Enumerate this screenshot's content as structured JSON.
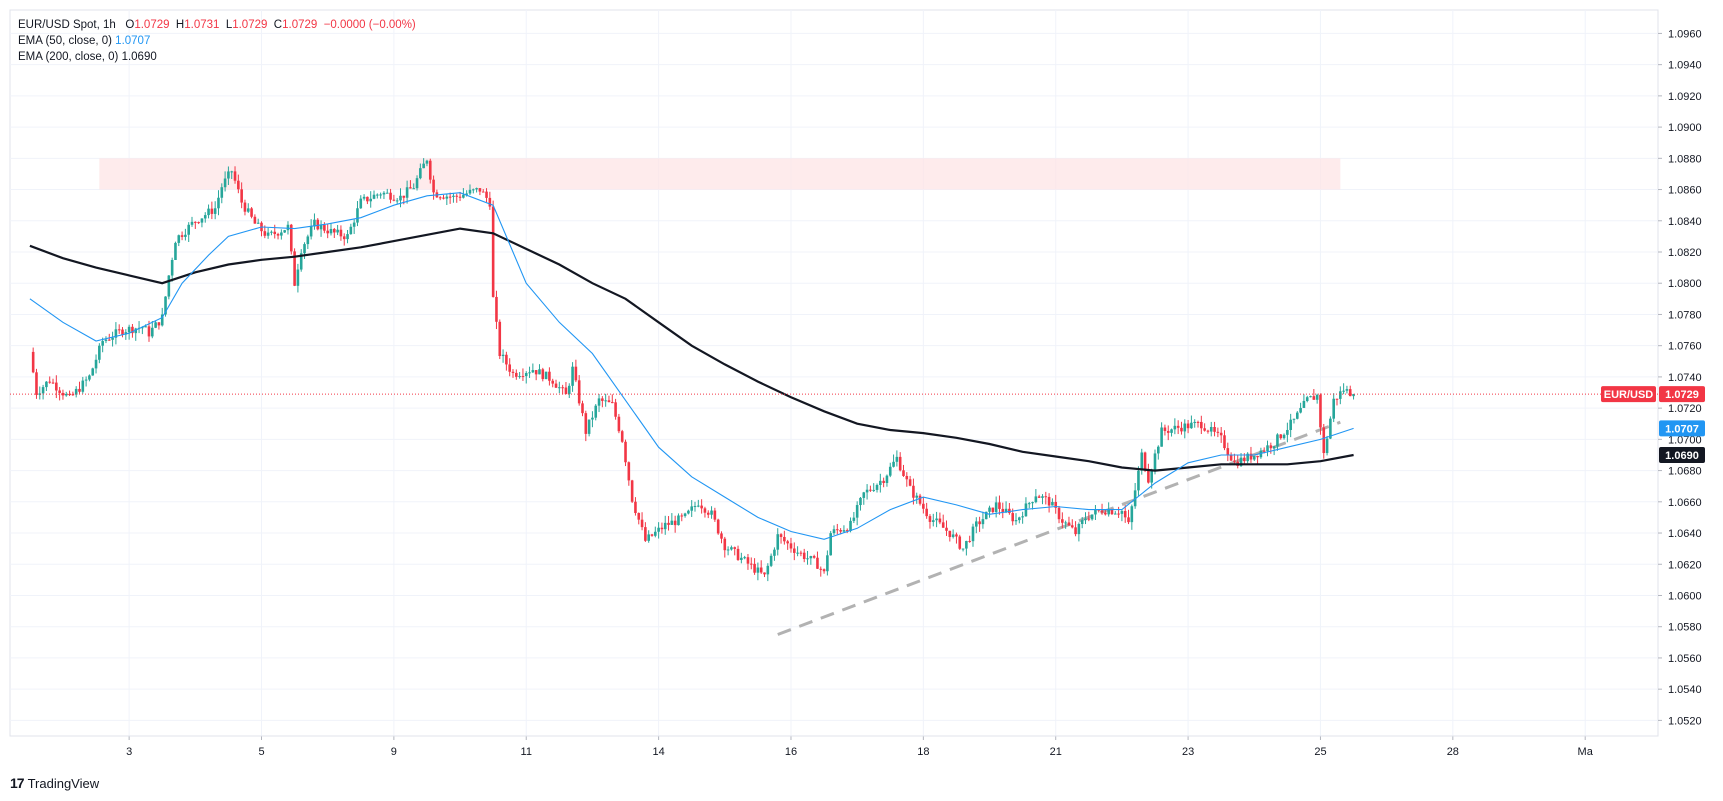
{
  "legend": {
    "symbol": "EUR/USD Spot, 1h",
    "ohlc_o_label": "O",
    "ohlc_o": "1.0729",
    "ohlc_h_label": "H",
    "ohlc_h": "1.0731",
    "ohlc_l_label": "L",
    "ohlc_l": "1.0729",
    "ohlc_c_label": "C",
    "ohlc_c": "1.0729",
    "ohlc_change": "−0.0000 (−0.00%)",
    "ema50_label": "EMA (50, close, 0)",
    "ema50_value": "1.0707",
    "ema200_label": "EMA (200, close, 0)",
    "ema200_value": "1.0690"
  },
  "branding": {
    "logo": "17",
    "name": "TradingView"
  },
  "colors": {
    "up": "#26a69a",
    "down": "#f23645",
    "ema50": "#2196f3",
    "ema200": "#131722",
    "zone": "#fde4e6",
    "trendline": "#b2b2b2",
    "grid": "#f0f3fa"
  },
  "chart_data": {
    "type": "candlestick",
    "y_axis": {
      "ylim": [
        1.051,
        1.0975
      ],
      "ticks": [
        "1.0960",
        "1.0940",
        "1.0920",
        "1.0900",
        "1.0880",
        "1.0860",
        "1.0840",
        "1.0820",
        "1.0800",
        "1.0780",
        "1.0760",
        "1.0740",
        "1.0720",
        "1.0700",
        "1.0680",
        "1.0660",
        "1.0640",
        "1.0620",
        "1.0600",
        "1.0580",
        "1.0560",
        "1.0540",
        "1.0520"
      ]
    },
    "x_axis": {
      "xlim": [
        -0.3,
        24.6
      ],
      "ticks": [
        {
          "label": "3",
          "t": 1.5
        },
        {
          "label": "5",
          "t": 3.5
        },
        {
          "label": "9",
          "t": 5.5
        },
        {
          "label": "11",
          "t": 7.5
        },
        {
          "label": "14",
          "t": 9.5
        },
        {
          "label": "16",
          "t": 11.5
        },
        {
          "label": "18",
          "t": 13.5
        },
        {
          "label": "21",
          "t": 15.5
        },
        {
          "label": "23",
          "t": 17.5
        },
        {
          "label": "25",
          "t": 19.5
        },
        {
          "label": "28",
          "t": 21.5
        },
        {
          "label": "Ma",
          "t": 23.5
        }
      ]
    },
    "price_tags": [
      {
        "label": "EUR/USD",
        "value": "1.0729",
        "price": 1.0729,
        "color": "#f23645"
      },
      {
        "label": "",
        "value": "1.0707",
        "price": 1.0707,
        "color": "#2196f3"
      },
      {
        "label": "",
        "value": "1.0690",
        "price": 1.069,
        "color": "#131722"
      }
    ],
    "last_price": 1.0729,
    "resistance_zone": {
      "t_start": 1.05,
      "t_end": 19.8,
      "price_low": 1.086,
      "price_high": 1.088
    },
    "trendline": {
      "t1": 11.3,
      "p1": 1.0575,
      "t2": 19.8,
      "p2": 1.0711
    },
    "close_path": [
      [
        0,
        1.0756
      ],
      [
        0.1,
        1.073
      ],
      [
        0.3,
        1.0738
      ],
      [
        0.6,
        1.0726
      ],
      [
        0.9,
        1.074
      ],
      [
        1.1,
        1.0763
      ],
      [
        1.4,
        1.077
      ],
      [
        1.7,
        1.0772
      ],
      [
        1.8,
        1.0768
      ],
      [
        2.0,
        1.0778
      ],
      [
        2.1,
        1.0805
      ],
      [
        2.2,
        1.0828
      ],
      [
        2.5,
        1.084
      ],
      [
        2.8,
        1.0848
      ],
      [
        2.9,
        1.0862
      ],
      [
        3.05,
        1.0872
      ],
      [
        3.2,
        1.0852
      ],
      [
        3.4,
        1.0838
      ],
      [
        3.6,
        1.083
      ],
      [
        3.9,
        1.0836
      ],
      [
        4.0,
        1.08
      ],
      [
        4.1,
        1.0822
      ],
      [
        4.3,
        1.0838
      ],
      [
        4.6,
        1.0832
      ],
      [
        4.8,
        1.083
      ],
      [
        5.0,
        1.0852
      ],
      [
        5.3,
        1.0858
      ],
      [
        5.6,
        1.0855
      ],
      [
        5.8,
        1.0862
      ],
      [
        6.0,
        1.088
      ],
      [
        6.1,
        1.0858
      ],
      [
        6.4,
        1.0855
      ],
      [
        6.8,
        1.086
      ],
      [
        6.95,
        1.0852
      ],
      [
        7.0,
        1.079
      ],
      [
        7.1,
        1.0755
      ],
      [
        7.3,
        1.0742
      ],
      [
        7.6,
        1.0745
      ],
      [
        7.9,
        1.0738
      ],
      [
        8.1,
        1.0728
      ],
      [
        8.2,
        1.0745
      ],
      [
        8.4,
        1.0705
      ],
      [
        8.6,
        1.0725
      ],
      [
        8.8,
        1.0722
      ],
      [
        8.95,
        1.07
      ],
      [
        9.1,
        1.0662
      ],
      [
        9.3,
        1.0635
      ],
      [
        9.6,
        1.0645
      ],
      [
        9.9,
        1.065
      ],
      [
        10.1,
        1.066
      ],
      [
        10.3,
        1.0652
      ],
      [
        10.5,
        1.0632
      ],
      [
        10.8,
        1.0622
      ],
      [
        11.1,
        1.0612
      ],
      [
        11.3,
        1.0638
      ],
      [
        11.6,
        1.0628
      ],
      [
        11.9,
        1.062
      ],
      [
        12.0,
        1.0614
      ],
      [
        12.1,
        1.064
      ],
      [
        12.4,
        1.0645
      ],
      [
        12.6,
        1.0665
      ],
      [
        12.9,
        1.0675
      ],
      [
        13.1,
        1.0688
      ],
      [
        13.3,
        1.0668
      ],
      [
        13.6,
        1.065
      ],
      [
        13.9,
        1.064
      ],
      [
        14.1,
        1.063
      ],
      [
        14.3,
        1.0645
      ],
      [
        14.6,
        1.0658
      ],
      [
        14.9,
        1.0648
      ],
      [
        15.2,
        1.0665
      ],
      [
        15.4,
        1.066
      ],
      [
        15.6,
        1.0648
      ],
      [
        15.8,
        1.064
      ],
      [
        15.95,
        1.065
      ],
      [
        16.2,
        1.0655
      ],
      [
        16.5,
        1.0654
      ],
      [
        16.6,
        1.0645
      ],
      [
        16.8,
        1.069
      ],
      [
        16.9,
        1.0675
      ],
      [
        17.1,
        1.0705
      ],
      [
        17.4,
        1.0708
      ],
      [
        17.7,
        1.071
      ],
      [
        18.0,
        1.07
      ],
      [
        18.2,
        1.0685
      ],
      [
        18.5,
        1.069
      ],
      [
        18.8,
        1.0698
      ],
      [
        19.1,
        1.0712
      ],
      [
        19.3,
        1.0725
      ],
      [
        19.45,
        1.0728
      ],
      [
        19.55,
        1.069
      ],
      [
        19.7,
        1.0725
      ],
      [
        19.85,
        1.0732
      ],
      [
        20.0,
        1.0729
      ]
    ],
    "ema50_path": [
      [
        0,
        1.079
      ],
      [
        0.5,
        1.0775
      ],
      [
        1.0,
        1.0763
      ],
      [
        1.5,
        1.0768
      ],
      [
        2.0,
        1.0778
      ],
      [
        2.3,
        1.08
      ],
      [
        2.7,
        1.0818
      ],
      [
        3.0,
        1.083
      ],
      [
        3.5,
        1.0836
      ],
      [
        4.0,
        1.0835
      ],
      [
        4.5,
        1.0838
      ],
      [
        5.0,
        1.0842
      ],
      [
        5.5,
        1.085
      ],
      [
        6.0,
        1.0856
      ],
      [
        6.5,
        1.0858
      ],
      [
        7.0,
        1.085
      ],
      [
        7.5,
        1.08
      ],
      [
        8.0,
        1.0775
      ],
      [
        8.5,
        1.0755
      ],
      [
        9.0,
        1.0725
      ],
      [
        9.5,
        1.0695
      ],
      [
        10.0,
        1.0676
      ],
      [
        10.5,
        1.0663
      ],
      [
        11.0,
        1.065
      ],
      [
        11.5,
        1.0641
      ],
      [
        12.0,
        1.0636
      ],
      [
        12.5,
        1.0643
      ],
      [
        13.0,
        1.0655
      ],
      [
        13.5,
        1.0663
      ],
      [
        14.0,
        1.0658
      ],
      [
        14.5,
        1.0652
      ],
      [
        15.0,
        1.0655
      ],
      [
        15.5,
        1.0657
      ],
      [
        16.0,
        1.0655
      ],
      [
        16.5,
        1.0655
      ],
      [
        17.0,
        1.0672
      ],
      [
        17.5,
        1.0685
      ],
      [
        18.0,
        1.069
      ],
      [
        18.5,
        1.069
      ],
      [
        19.0,
        1.0695
      ],
      [
        19.5,
        1.07
      ],
      [
        20.0,
        1.0707
      ]
    ],
    "ema200_path": [
      [
        0,
        1.0824
      ],
      [
        0.5,
        1.0816
      ],
      [
        1.0,
        1.081
      ],
      [
        1.5,
        1.0805
      ],
      [
        2.0,
        1.08
      ],
      [
        2.5,
        1.0807
      ],
      [
        3.0,
        1.0812
      ],
      [
        3.5,
        1.0815
      ],
      [
        4.0,
        1.0817
      ],
      [
        4.5,
        1.082
      ],
      [
        5.0,
        1.0823
      ],
      [
        5.5,
        1.0827
      ],
      [
        6.0,
        1.0831
      ],
      [
        6.5,
        1.0835
      ],
      [
        7.0,
        1.0832
      ],
      [
        7.5,
        1.0822
      ],
      [
        8.0,
        1.0812
      ],
      [
        8.5,
        1.08
      ],
      [
        9.0,
        1.079
      ],
      [
        9.5,
        1.0775
      ],
      [
        10.0,
        1.076
      ],
      [
        10.5,
        1.0748
      ],
      [
        11.0,
        1.0737
      ],
      [
        11.5,
        1.0727
      ],
      [
        12.0,
        1.0718
      ],
      [
        12.5,
        1.071
      ],
      [
        13.0,
        1.0706
      ],
      [
        13.5,
        1.0704
      ],
      [
        14.0,
        1.0701
      ],
      [
        14.5,
        1.0697
      ],
      [
        15.0,
        1.0692
      ],
      [
        15.5,
        1.0689
      ],
      [
        16.0,
        1.0686
      ],
      [
        16.5,
        1.0682
      ],
      [
        17.0,
        1.068
      ],
      [
        17.5,
        1.0682
      ],
      [
        18.0,
        1.0684
      ],
      [
        18.5,
        1.0684
      ],
      [
        19.0,
        1.0684
      ],
      [
        19.5,
        1.0686
      ],
      [
        20.0,
        1.069
      ]
    ]
  }
}
